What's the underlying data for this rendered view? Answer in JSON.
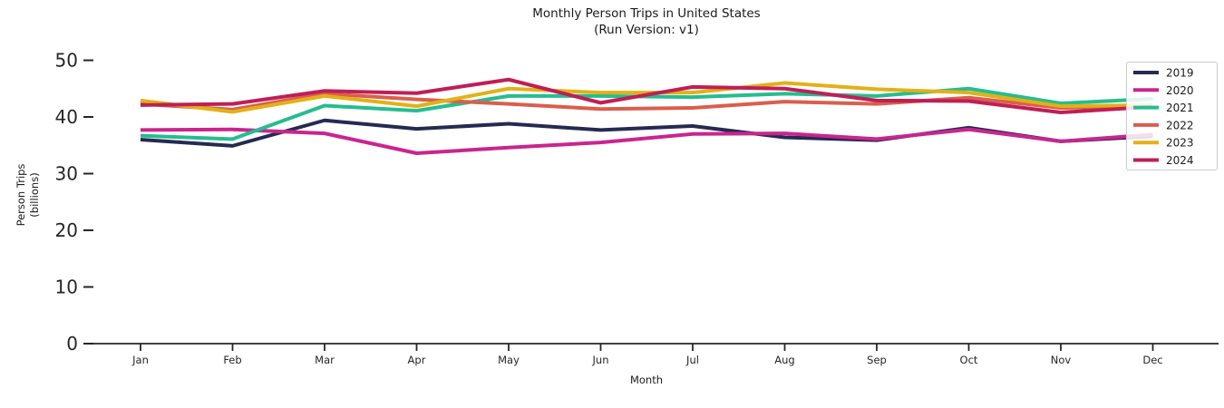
{
  "chart_data": {
    "type": "line",
    "title": "Monthly Person Trips in United States",
    "subtitle": "(Run Version: v1)",
    "xlabel": "Month",
    "ylabel": "Person Trips (billions)",
    "ylabel_line1": "Person Trips",
    "ylabel_line2": "(billions)",
    "categories": [
      "Jan",
      "Feb",
      "Mar",
      "Apr",
      "May",
      "Jun",
      "Jul",
      "Aug",
      "Sep",
      "Oct",
      "Nov",
      "Dec"
    ],
    "yticks": [
      0,
      10,
      20,
      30,
      40,
      50
    ],
    "ylim": [
      0,
      50
    ],
    "grid": false,
    "legend_position": "upper right",
    "legend_border_color": "#cccccc",
    "axis_color": "#262626",
    "series": [
      {
        "name": "2019",
        "color": "#262a52",
        "values": [
          36.0,
          34.9,
          39.4,
          37.9,
          38.8,
          37.7,
          38.4,
          36.4,
          35.9,
          38.1,
          35.7,
          36.6
        ]
      },
      {
        "name": "2020",
        "color": "#c9258f",
        "values": [
          37.7,
          37.8,
          37.1,
          33.6,
          34.6,
          35.5,
          37.0,
          37.1,
          36.1,
          37.8,
          35.7,
          36.9
        ]
      },
      {
        "name": "2021",
        "color": "#25bd90",
        "values": [
          36.7,
          36.1,
          42.0,
          41.1,
          43.7,
          43.7,
          43.5,
          44.1,
          43.7,
          45.0,
          42.4,
          43.2
        ]
      },
      {
        "name": "2022",
        "color": "#d95f4c",
        "values": [
          42.3,
          41.3,
          44.1,
          43.1,
          42.3,
          41.4,
          41.6,
          42.7,
          42.3,
          43.4,
          41.6,
          41.9
        ]
      },
      {
        "name": "2023",
        "color": "#e2b116",
        "values": [
          42.9,
          40.9,
          43.7,
          41.9,
          45.0,
          44.3,
          44.3,
          46.0,
          44.9,
          44.3,
          41.9,
          42.1
        ]
      },
      {
        "name": "2024",
        "color": "#c01e56",
        "values": [
          42.1,
          42.3,
          44.6,
          44.2,
          46.6,
          42.5,
          45.3,
          45.0,
          42.9,
          42.8,
          40.8,
          41.8
        ]
      }
    ]
  }
}
